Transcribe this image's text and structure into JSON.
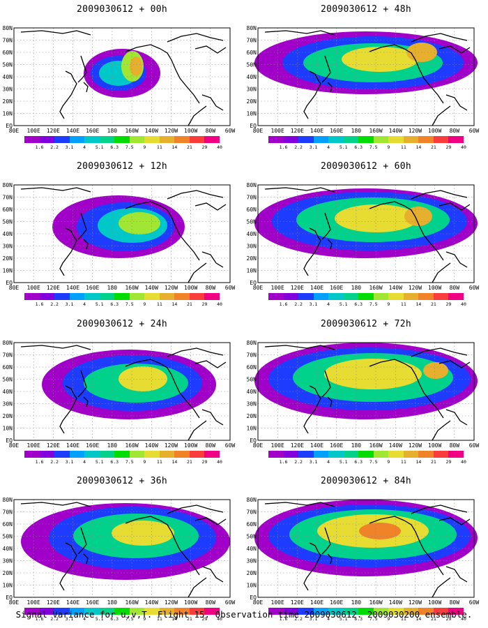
{
  "figure": {
    "caption": "Signal Variance for u,v,T. Flight 15. Observation time 2009030612. 2009030200 ensemble.",
    "panels": [
      {
        "title": "2009030612 + 00h",
        "lead": "00h"
      },
      {
        "title": "2009030612 + 48h",
        "lead": "48h"
      },
      {
        "title": "2009030612 + 12h",
        "lead": "12h"
      },
      {
        "title": "2009030612 + 60h",
        "lead": "60h"
      },
      {
        "title": "2009030612 + 24h",
        "lead": "24h"
      },
      {
        "title": "2009030612 + 72h",
        "lead": "72h"
      },
      {
        "title": "2009030612 + 36h",
        "lead": "36h"
      },
      {
        "title": "2009030612 + 84h",
        "lead": "84h"
      }
    ],
    "x_tick_labels": [
      "80E",
      "100E",
      "120E",
      "140E",
      "160E",
      "180",
      "160W",
      "140W",
      "120W",
      "100W",
      "80W",
      "60W"
    ],
    "y_tick_labels": [
      "EQ",
      "10N",
      "20N",
      "30N",
      "40N",
      "50N",
      "60N",
      "70N",
      "80N"
    ],
    "colorbar_labels": [
      "1.6",
      "2.2",
      "3.1",
      "4",
      "5.1",
      "6.3",
      "7.5",
      "9",
      "11",
      "14",
      "21",
      "29",
      "40"
    ],
    "colorbar_colors": [
      "#a000c8",
      "#8200dc",
      "#1e3cff",
      "#00a0ff",
      "#00c8c8",
      "#00d28c",
      "#00dc00",
      "#a0e632",
      "#e6dc32",
      "#e6af2d",
      "#f08228",
      "#fa3c3c",
      "#f00082"
    ]
  }
}
